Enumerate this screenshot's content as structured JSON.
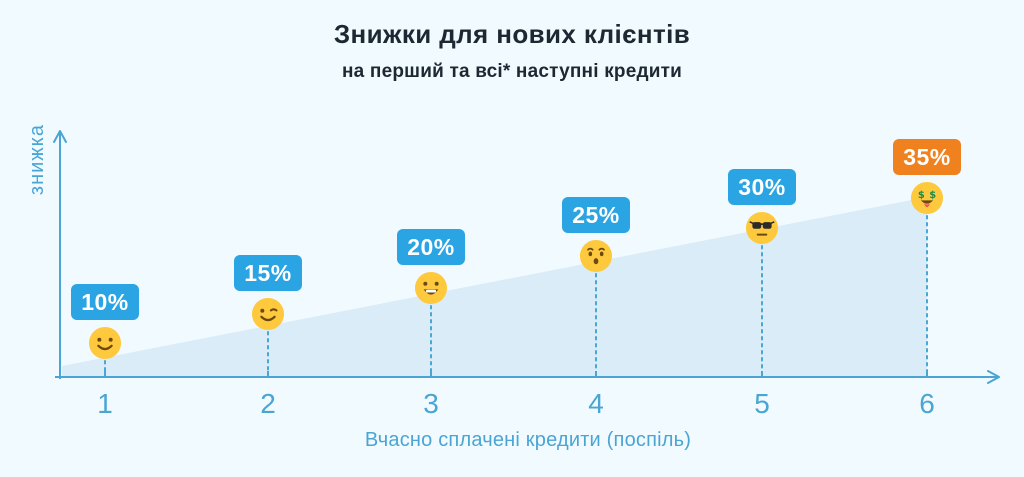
{
  "title": "Знижки для нових клієнтів",
  "subtitle": "на перший та всі* наступні кредити",
  "chart_data": {
    "type": "scatter",
    "title": "Знижки для нових клієнтів",
    "subtitle": "на перший та всі* наступні кредити",
    "xlabel": "Вчасно сплачені кредити (поспіль)",
    "ylabel": "знижка",
    "categories": [
      1,
      2,
      3,
      4,
      5,
      6
    ],
    "values": [
      10,
      15,
      20,
      25,
      30,
      35
    ],
    "grid": false,
    "legend": false,
    "area": "rising shaded band under the points from x=1 to x=6",
    "points": [
      {
        "x": 1,
        "value": 10,
        "label": "10%",
        "emoji": "smiling",
        "icon": "smiling-emoji-icon",
        "badge_color": "#2AA4E3"
      },
      {
        "x": 2,
        "value": 15,
        "label": "15%",
        "emoji": "winking",
        "icon": "winking-emoji-icon",
        "badge_color": "#2AA4E3"
      },
      {
        "x": 3,
        "value": 20,
        "label": "20%",
        "emoji": "grinning",
        "icon": "grinning-emoji-icon",
        "badge_color": "#2AA4E3"
      },
      {
        "x": 4,
        "value": 25,
        "label": "25%",
        "emoji": "surprised",
        "icon": "surprised-emoji-icon",
        "badge_color": "#2AA4E3"
      },
      {
        "x": 5,
        "value": 30,
        "label": "30%",
        "emoji": "cool",
        "icon": "cool-sunglasses-emoji-icon",
        "badge_color": "#2AA4E3"
      },
      {
        "x": 6,
        "value": 35,
        "label": "35%",
        "emoji": "money",
        "icon": "money-mouth-emoji-icon",
        "badge_color": "#F0811F"
      }
    ]
  },
  "colors": {
    "background": "#F1FAFE",
    "area_fill": "#DAECF8",
    "axis_blue": "#4AA5D5",
    "badge_blue": "#2AA4E3",
    "badge_orange": "#F0811F",
    "title_text": "#1E2832",
    "badge_text": "#FFFFFF",
    "emoji_yellow": "#FFC93E",
    "emoji_features": "#6B4A12"
  }
}
